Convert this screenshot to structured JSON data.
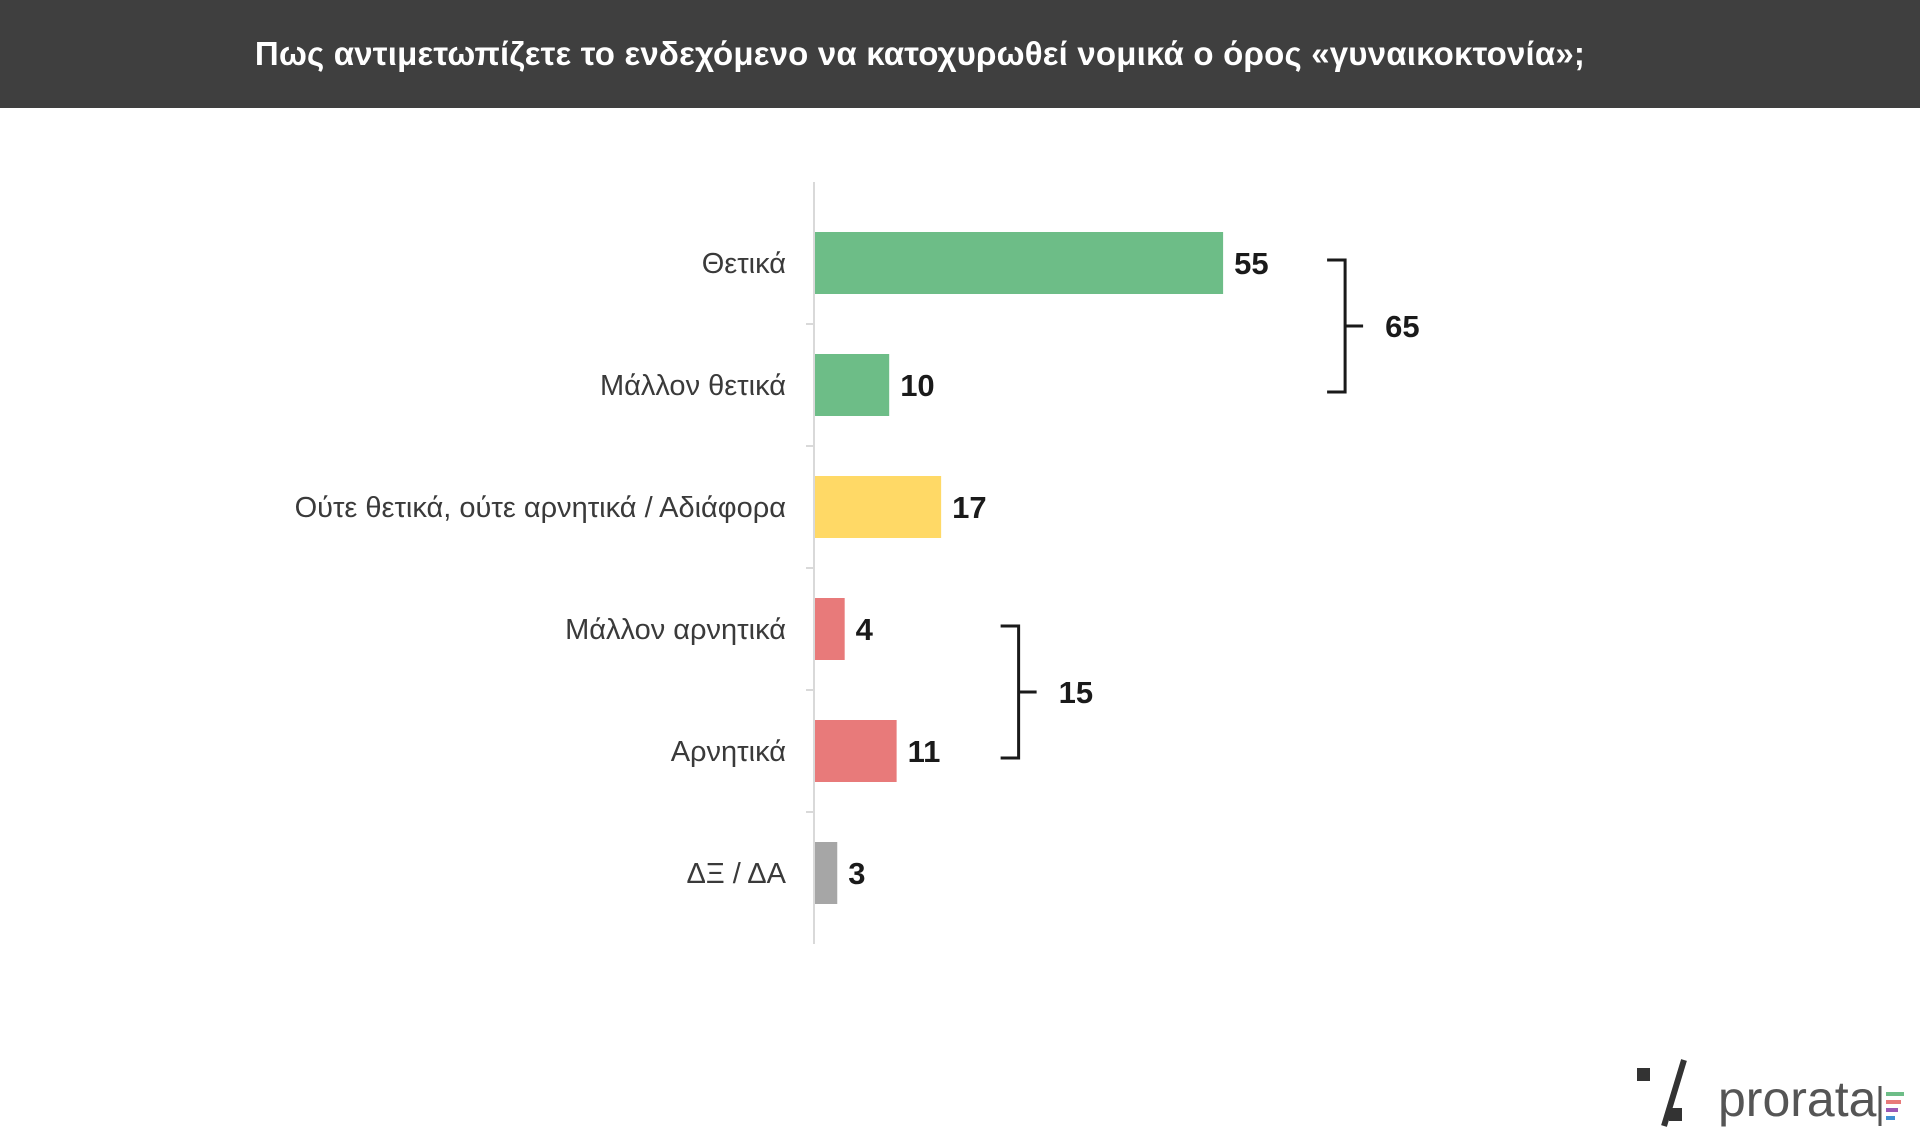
{
  "chart_data": {
    "type": "bar",
    "orientation": "horizontal",
    "title": "Πως αντιμετωπίζετε το ενδεχόμενο να κατοχυρωθεί νομικά ο όρος «γυναικοκτονία»;",
    "categories": [
      "Θετικά",
      "Μάλλον θετικά",
      "Ούτε θετικά, ούτε αρνητικά / Αδιάφορα",
      "Μάλλον αρνητικά",
      "Αρνητικά",
      "ΔΞ / ΔΑ"
    ],
    "values": [
      55,
      10,
      17,
      4,
      11,
      3
    ],
    "colors": [
      "#6dbd87",
      "#6dbd87",
      "#ffd966",
      "#e87a7a",
      "#e87a7a",
      "#a6a6a6"
    ],
    "groups": [
      {
        "members": [
          0,
          1
        ],
        "total": "65"
      },
      {
        "members": [
          3,
          4
        ],
        "total": "15"
      }
    ],
    "xlim": [
      0,
      100
    ],
    "grid": false,
    "legend": "none"
  },
  "logo": {
    "symbol": "%",
    "text": "prorata",
    "accent_colors": [
      "#6dbd87",
      "#e87a7a",
      "#9b59b6",
      "#3f8fd2"
    ]
  }
}
